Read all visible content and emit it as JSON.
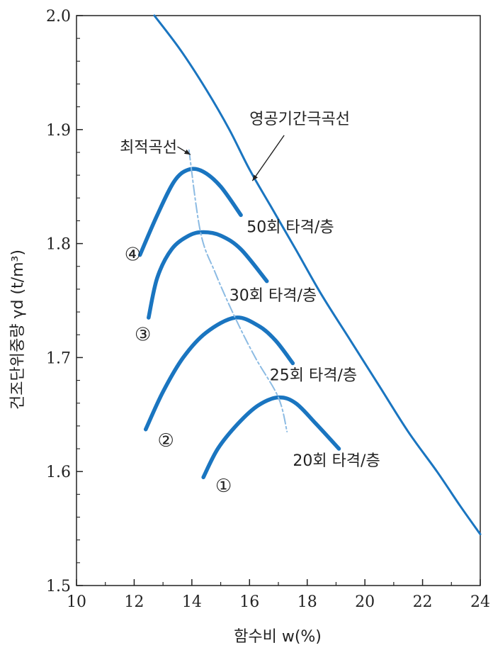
{
  "chart_data": {
    "type": "line",
    "title": "",
    "xlabel": "함수비 w(%)",
    "ylabel": "건조단위중량 γd (t/m³)",
    "xlim": [
      10,
      24
    ],
    "ylim": [
      1.5,
      2.0
    ],
    "x_ticks": [
      "10",
      "12",
      "14",
      "16",
      "18",
      "20",
      "22",
      "24"
    ],
    "y_ticks": [
      "1.5",
      "1.6",
      "1.7",
      "1.8",
      "1.9",
      "2.0"
    ],
    "grid": false,
    "colors": {
      "curve": "#1a75c0",
      "optimum": "#8cbbe3",
      "axis": "#222222"
    },
    "series": [
      {
        "name": "50회 타격/층",
        "marker": "④",
        "style": "thick",
        "points": [
          [
            12.2,
            1.79
          ],
          [
            12.8,
            1.825
          ],
          [
            13.4,
            1.855
          ],
          [
            13.9,
            1.865
          ],
          [
            14.4,
            1.863
          ],
          [
            15.0,
            1.85
          ],
          [
            15.7,
            1.825
          ]
        ]
      },
      {
        "name": "30회 타격/층",
        "marker": "③",
        "style": "thick",
        "points": [
          [
            12.5,
            1.735
          ],
          [
            12.8,
            1.77
          ],
          [
            13.3,
            1.795
          ],
          [
            13.9,
            1.807
          ],
          [
            14.4,
            1.81
          ],
          [
            15.0,
            1.807
          ],
          [
            15.7,
            1.795
          ],
          [
            16.6,
            1.767
          ]
        ]
      },
      {
        "name": "25회 타격/층",
        "marker": "②",
        "style": "thick",
        "points": [
          [
            12.4,
            1.637
          ],
          [
            13.0,
            1.67
          ],
          [
            13.7,
            1.7
          ],
          [
            14.5,
            1.722
          ],
          [
            15.5,
            1.735
          ],
          [
            16.3,
            1.728
          ],
          [
            16.9,
            1.715
          ],
          [
            17.5,
            1.695
          ]
        ]
      },
      {
        "name": "20회 타격/층",
        "marker": "①",
        "style": "thick",
        "points": [
          [
            14.4,
            1.595
          ],
          [
            14.9,
            1.62
          ],
          [
            15.6,
            1.642
          ],
          [
            16.3,
            1.658
          ],
          [
            17.0,
            1.665
          ],
          [
            17.6,
            1.66
          ],
          [
            18.3,
            1.642
          ],
          [
            19.1,
            1.62
          ]
        ]
      },
      {
        "name": "영공기간극곡선",
        "style": "thin",
        "points": [
          [
            12.7,
            2.0
          ],
          [
            13.6,
            1.97
          ],
          [
            14.5,
            1.935
          ],
          [
            15.3,
            1.9
          ],
          [
            16.0,
            1.865
          ],
          [
            16.8,
            1.83
          ],
          [
            17.6,
            1.795
          ],
          [
            18.5,
            1.755
          ],
          [
            19.5,
            1.715
          ],
          [
            20.5,
            1.675
          ],
          [
            21.5,
            1.635
          ],
          [
            22.5,
            1.6
          ],
          [
            23.3,
            1.57
          ],
          [
            24.0,
            1.545
          ]
        ]
      },
      {
        "name": "최적곡선",
        "style": "dashdot",
        "points": [
          [
            13.9,
            1.882
          ],
          [
            14.3,
            1.81
          ],
          [
            14.8,
            1.775
          ],
          [
            15.5,
            1.735
          ],
          [
            16.2,
            1.7
          ],
          [
            17.0,
            1.665
          ],
          [
            17.3,
            1.635
          ]
        ]
      }
    ],
    "annotations": [
      {
        "text": "50회 타격/층",
        "x": 15.9,
        "y": 1.81
      },
      {
        "text": "30회 타격/층",
        "x": 15.3,
        "y": 1.75
      },
      {
        "text": "25회 타격/층",
        "x": 16.7,
        "y": 1.68
      },
      {
        "text": "20회 타격/층",
        "x": 17.5,
        "y": 1.605
      },
      {
        "text": "최적곡선",
        "x": 11.5,
        "y": 1.88
      },
      {
        "text": "영공기간극곡선",
        "x": 16.0,
        "y": 1.905
      }
    ],
    "markers": [
      {
        "text": "④",
        "x": 11.95,
        "y": 1.785
      },
      {
        "text": "③",
        "x": 12.3,
        "y": 1.715
      },
      {
        "text": "②",
        "x": 13.1,
        "y": 1.622
      },
      {
        "text": "①",
        "x": 15.1,
        "y": 1.582
      }
    ]
  }
}
